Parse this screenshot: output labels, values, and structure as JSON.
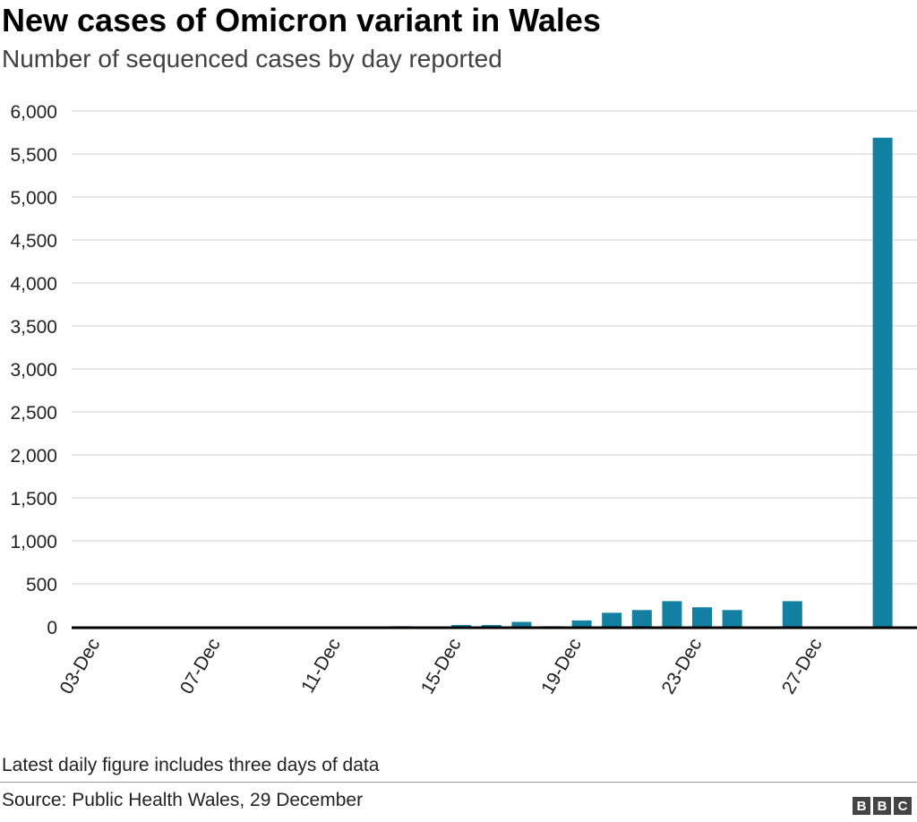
{
  "chart_data": {
    "type": "bar",
    "title": "New cases of Omicron variant in Wales",
    "subtitle": "Number of sequenced cases by day reported",
    "categories": [
      "13-Dec",
      "15-Dec",
      "16-Dec",
      "17-Dec",
      "18-Dec",
      "19-Dec",
      "20-Dec",
      "21-Dec",
      "22-Dec",
      "23-Dec",
      "24-Dec",
      "26-Dec",
      "29-Dec"
    ],
    "values": [
      7,
      21,
      21,
      57,
      7,
      74,
      163,
      195,
      298,
      227,
      195,
      298,
      5690
    ],
    "x_tick_labels": [
      "03-Dec",
      "07-Dec",
      "11-Dec",
      "15-Dec",
      "19-Dec",
      "23-Dec",
      "27-Dec"
    ],
    "y_tick_labels": [
      "0",
      "500",
      "1,000",
      "1,500",
      "2,000",
      "2,500",
      "3,000",
      "3,500",
      "4,000",
      "4,500",
      "5,000",
      "5,500",
      "6,000"
    ],
    "ylim": [
      0,
      6000
    ],
    "xlabel": "",
    "ylabel": "",
    "grid": true,
    "bar_color": "#1380A1",
    "note": "Latest daily figure includes three days of data",
    "source": "Source: Public Health Wales, 29 December"
  },
  "logo": {
    "letters": [
      "B",
      "B",
      "C"
    ]
  }
}
